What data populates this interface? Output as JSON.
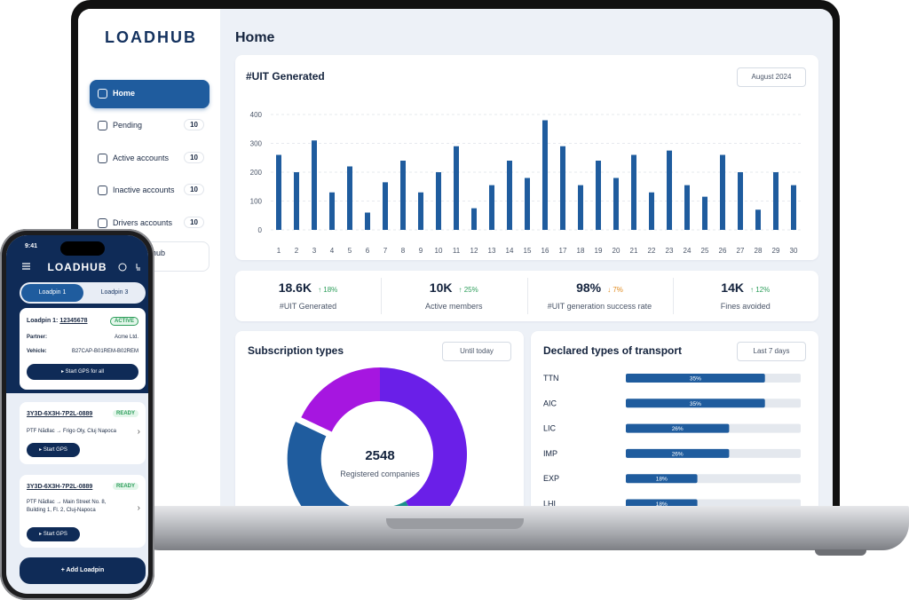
{
  "sidebar": {
    "logo": "LOADHUB",
    "nav": [
      {
        "label": "Home"
      },
      {
        "label": "Pending",
        "count": 10
      },
      {
        "label": "Active accounts",
        "count": 10
      },
      {
        "label": "Inactive accounts",
        "count": 10
      },
      {
        "label": "Drivers accounts",
        "count": 10
      },
      {
        "label": "hub"
      }
    ]
  },
  "header": {
    "title": "Home"
  },
  "uit_chart": {
    "type": "bar",
    "title": "#UIT Generated",
    "filter": "August 2024",
    "categories": [
      "1",
      "2",
      "3",
      "4",
      "5",
      "6",
      "7",
      "8",
      "9",
      "10",
      "11",
      "12",
      "13",
      "14",
      "15",
      "16",
      "17",
      "18",
      "19",
      "20",
      "21",
      "22",
      "23",
      "24",
      "25",
      "26",
      "27",
      "28",
      "29",
      "30"
    ],
    "values": [
      260,
      200,
      310,
      130,
      220,
      60,
      165,
      240,
      130,
      200,
      290,
      75,
      155,
      240,
      180,
      380,
      290,
      155,
      240,
      180,
      260,
      130,
      275,
      155,
      115,
      260,
      200,
      70,
      200,
      155
    ],
    "color": "#1f5c9e",
    "ylim": [
      0,
      400
    ],
    "yticks": [
      0,
      100,
      200,
      300,
      400
    ],
    "grid": true
  },
  "stats": [
    {
      "value": "18.6K",
      "change": "↑ 18%",
      "color": "#2e9e5b",
      "label": "#UIT Generated"
    },
    {
      "value": "10K",
      "change": "↑ 25%",
      "color": "#2e9e5b",
      "label": "Active members"
    },
    {
      "value": "98%",
      "change": "↓ 7%",
      "color": "#e08a1e",
      "label": "#UIT generation success rate"
    },
    {
      "value": "14K",
      "change": "↑ 12%",
      "color": "#2e9e5b",
      "label": "Fines avoided"
    }
  ],
  "subscription_types": {
    "type": "donut",
    "title": "Subscription types",
    "filter": "Until today",
    "total": 2548,
    "total_label": "Registered companies",
    "values": [
      42,
      5,
      35,
      18
    ],
    "colors": [
      "#6a1fe8",
      "#1c8f8a",
      "#1f5c9e",
      "#a616e0"
    ]
  },
  "transport": {
    "type": "hbar",
    "title": "Declared types of transport",
    "filter": "Last 7 days",
    "categories": [
      "TTN",
      "AIC",
      "LIC",
      "IMP",
      "EXP",
      "LHI"
    ],
    "values": [
      35,
      35,
      26,
      26,
      18,
      18
    ],
    "value_labels": [
      "35%",
      "35%",
      "26%",
      "26%",
      "18%",
      "18%"
    ],
    "xlim": [
      0,
      44
    ],
    "color": "#1f5c9e",
    "track_color": "#e4e8ee"
  },
  "phone": {
    "time": "9:41",
    "logo": "LOADHUB",
    "tabs": [
      "Loadpin 1",
      "Loadpin 3"
    ],
    "active": {
      "title": "Loadpin 1:",
      "id": "12345678",
      "status": "ACTIVE",
      "partner_label": "Partner:",
      "partner": "Acme Ltd.",
      "vehicle_label": "Vehicle:",
      "vehicle": "B27CAP-B01REM-B02REM",
      "button": "Start GPS for all"
    },
    "loads": [
      {
        "id": "3Y3D-6X3H-7P2L-0889",
        "status": "READY",
        "route": "PTF Nădlac → Frigo Oly, Cluj Napoca",
        "button": "Start GPS"
      },
      {
        "id": "3Y3D-6X3H-7P2L-0889",
        "status": "READY",
        "route": "PTF Nădlac → Main Street No. 8, Building 1, Fl. 2, Cluj-Napoca",
        "button": "Start GPS"
      }
    ],
    "add_button": "+ Add Loadpin"
  }
}
